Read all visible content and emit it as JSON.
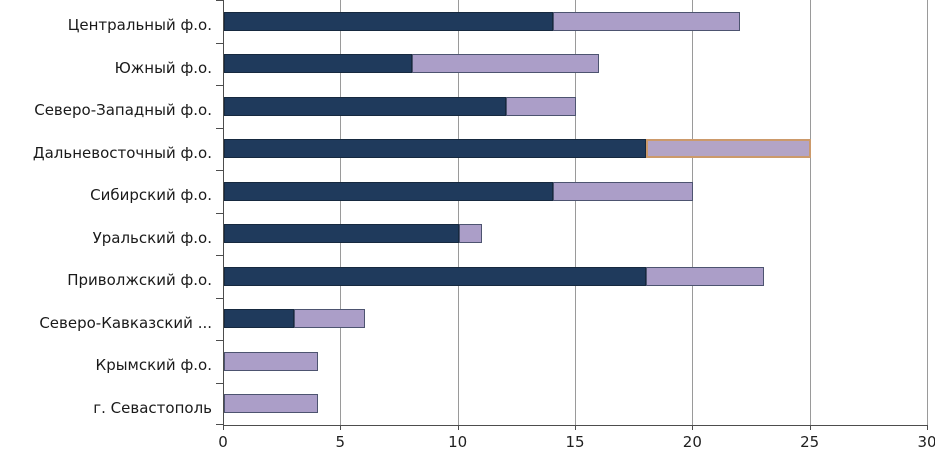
{
  "chart_data": {
    "type": "bar",
    "orientation": "horizontal",
    "stacked": true,
    "title": "",
    "xlabel": "",
    "ylabel": "",
    "xlim": [
      0,
      30
    ],
    "grid": true,
    "legend": "none",
    "categories": [
      "Центральный ф.о.",
      "Южный ф.о.",
      "Северо-Западный ф.о.",
      "Дальневосточный ф.о.",
      "Сибирский ф.о.",
      "Уральский ф.о.",
      "Приволжский ф.о.",
      "Северо-Кавказский ...",
      "Крымский ф.о.",
      "г. Севастополь"
    ],
    "series": [
      {
        "name": "series-1",
        "color": "#1F3A5C",
        "border_color": "#16293F",
        "values": [
          14,
          8,
          12,
          18,
          14,
          10,
          18,
          3,
          0,
          0
        ]
      },
      {
        "name": "series-2",
        "color": "#AB9EC8",
        "border_color": "#4D5470",
        "values": [
          8,
          8,
          3,
          7,
          6,
          1,
          5,
          3,
          4,
          4
        ]
      }
    ],
    "stack_totals": [
      22,
      16,
      15,
      25,
      20,
      11,
      23,
      6,
      4,
      4
    ],
    "highlight": {
      "category_index": 3,
      "series_index": 1,
      "fill": "#B3A4C6",
      "border_color": "#CC9A6B"
    },
    "x_ticks": [
      "0",
      "5",
      "10",
      "15",
      "20",
      "25",
      "30"
    ]
  },
  "colors": {
    "background": "#ffffff",
    "gridline": "#9a9a9a",
    "axis": "#4d4d4d",
    "label_text": "#1a1a1a",
    "tick_text": "#1f1f1f"
  }
}
